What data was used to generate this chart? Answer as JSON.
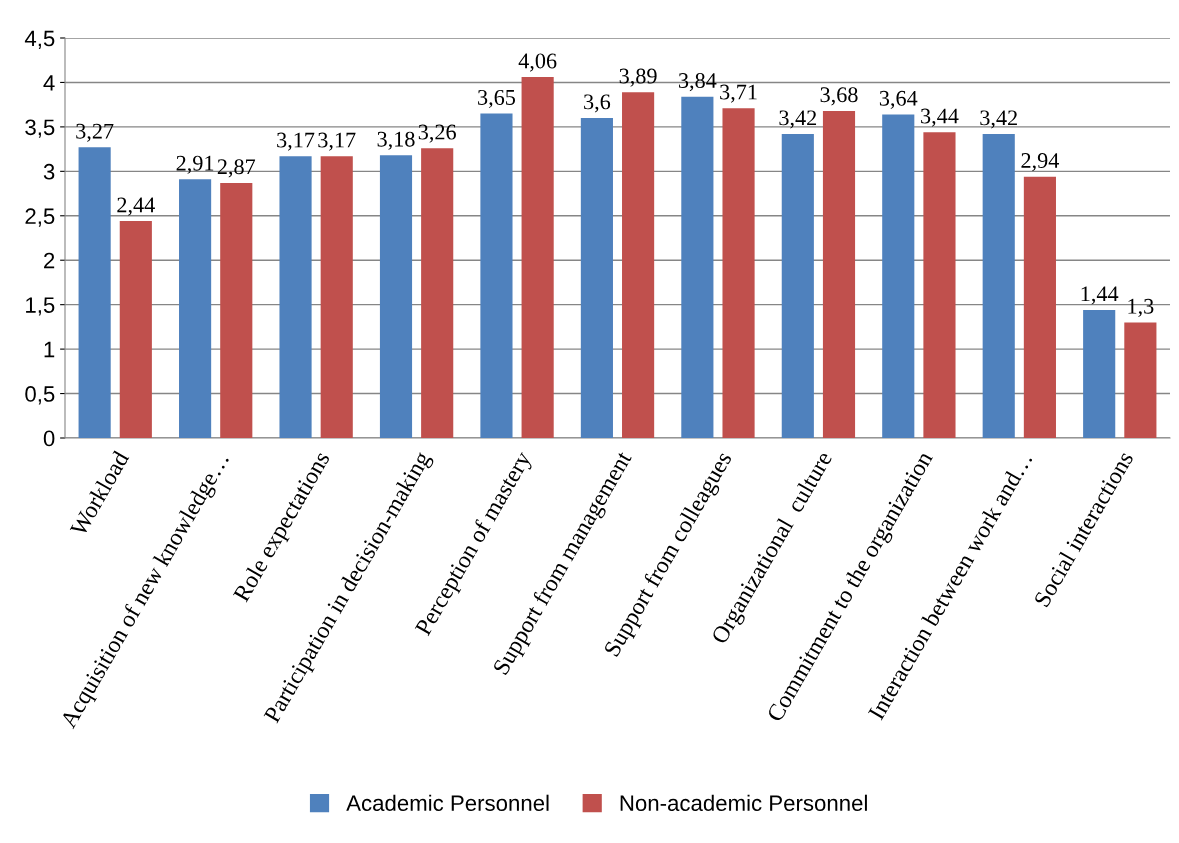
{
  "chart_data": {
    "type": "bar",
    "categories": [
      "Workload",
      "Acquisition of new knowledge…",
      "Role expectations",
      "Participation in decision-making",
      "Perception of mastery",
      "Support from management",
      "Support from colleagues",
      "Organizational  culture",
      "Commitment to the organization",
      "Interaction between work and…",
      "Social interactions"
    ],
    "series": [
      {
        "name": "Academic Personnel",
        "color": "#4f81bd",
        "values": [
          3.27,
          2.91,
          3.17,
          3.18,
          3.65,
          3.6,
          3.84,
          3.42,
          3.64,
          3.42,
          1.44
        ],
        "value_labels": [
          "3,27",
          "2,91",
          "3,17",
          "3,18",
          "3,65",
          "3,6",
          "3,84",
          "3,42",
          "3,64",
          "3,42",
          "1,44"
        ]
      },
      {
        "name": "Non-academic Personnel",
        "color": "#c0504d",
        "values": [
          2.44,
          2.87,
          3.17,
          3.26,
          4.06,
          3.89,
          3.71,
          3.68,
          3.44,
          2.94,
          1.3
        ],
        "value_labels": [
          "2,44",
          "2,87",
          "3,17",
          "3,26",
          "4,06",
          "3,89",
          "3,71",
          "3,68",
          "3,44",
          "2,94",
          "1,3"
        ]
      }
    ],
    "ylim": [
      0,
      4.5
    ],
    "yticks": [
      0,
      {
        "value": 0.5,
        "label": "0,5"
      },
      1,
      {
        "value": 1.5,
        "label": "1,5"
      },
      2,
      {
        "value": 2.5,
        "label": "2,5"
      },
      3,
      {
        "value": 3.5,
        "label": "3,5"
      },
      4,
      {
        "value": 4.5,
        "label": "4,5"
      }
    ],
    "grid": "y",
    "legend": "bottom"
  }
}
